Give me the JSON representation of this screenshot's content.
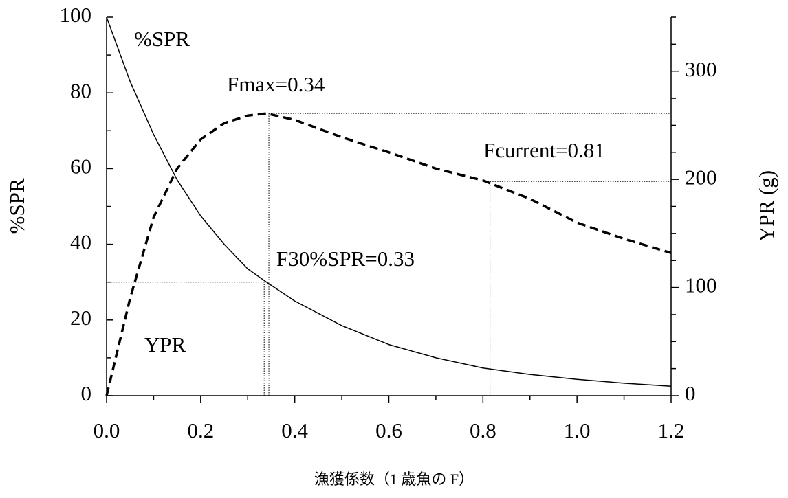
{
  "chart_data": {
    "type": "line",
    "x_label": "漁獲係数（1 歳魚の F）",
    "y_label": "%SPR",
    "y2_label": "YPR (g)",
    "x": [
      0,
      0.05,
      0.1,
      0.15,
      0.2,
      0.25,
      0.3,
      0.34,
      0.4,
      0.5,
      0.6,
      0.7,
      0.8,
      0.9,
      1.0,
      1.1,
      1.2
    ],
    "series": [
      {
        "name": "%SPR",
        "color": "#000000",
        "dash": false,
        "axis": "y",
        "values": [
          100,
          83,
          69,
          57,
          47.5,
          40,
          33.5,
          30,
          25,
          18.5,
          13.5,
          10,
          7.3,
          5.6,
          4.3,
          3.3,
          2.5
        ]
      },
      {
        "name": "YPR",
        "color": "#000000",
        "dash": true,
        "axis": "y2",
        "values": [
          0,
          90,
          165,
          210,
          237,
          252,
          259,
          261,
          255,
          239,
          225,
          210,
          199,
          182,
          160,
          145,
          132
        ]
      }
    ],
    "reference_lines": [
      {
        "label": "Fmax=0.34",
        "x": 0.345,
        "y": 261,
        "axis": "y2"
      },
      {
        "label": "F30%SPR=0.33",
        "x": 0.335,
        "y": 30,
        "axis": "y"
      },
      {
        "label": "Fcurrent=0.81",
        "x": 0.815,
        "y": 198,
        "axis": "y2"
      }
    ],
    "xlim": [
      0,
      1.2
    ],
    "ylim": [
      0,
      100
    ],
    "y2lim": [
      0,
      350
    ],
    "xticks": [
      {
        "value": 0,
        "label": "0.0"
      },
      0.2,
      0.4,
      0.6,
      0.8,
      {
        "value": 1,
        "label": "1.0"
      },
      1.2
    ],
    "xminorticks": [
      0.1,
      0.3,
      0.5,
      0.7,
      0.9,
      1.1
    ],
    "yticks": [
      0,
      20,
      40,
      60,
      80,
      100
    ],
    "yminorticks": [
      10,
      30,
      50,
      70,
      90
    ],
    "y2ticks": [
      0,
      100,
      200,
      300
    ],
    "y2minorticks": [
      25,
      50,
      75,
      125,
      150,
      175,
      225,
      250,
      275,
      325,
      350
    ]
  }
}
